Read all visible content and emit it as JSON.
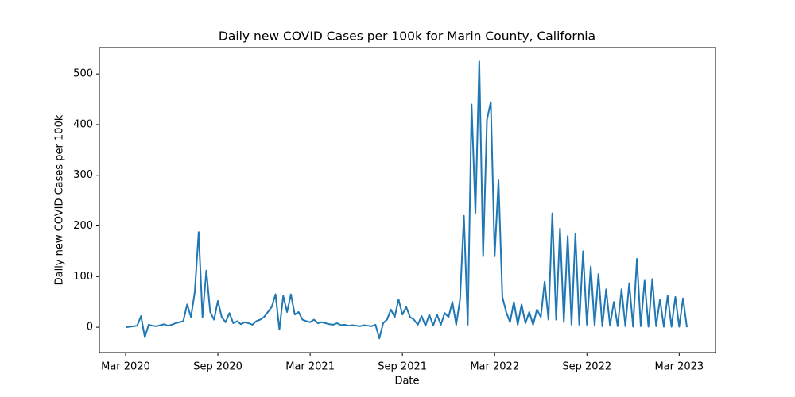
{
  "chart_data": {
    "type": "line",
    "title": "Daily new COVID Cases per 100k for Marin County, California",
    "xlabel": "Date",
    "ylabel": "Daily new COVID Cases per 100k",
    "color": "#1f77b4",
    "x": [
      "2020-03",
      "2020-03",
      "2020-03",
      "2020-03",
      "2020-04",
      "2020-04",
      "2020-04",
      "2020-04",
      "2020-05",
      "2020-05",
      "2020-05",
      "2020-05",
      "2020-06",
      "2020-06",
      "2020-06",
      "2020-06",
      "2020-07",
      "2020-07",
      "2020-07",
      "2020-07",
      "2020-08",
      "2020-08",
      "2020-08",
      "2020-08",
      "2020-09",
      "2020-09",
      "2020-09",
      "2020-09",
      "2020-10",
      "2020-10",
      "2020-10",
      "2020-10",
      "2020-11",
      "2020-11",
      "2020-11",
      "2020-11",
      "2020-12",
      "2020-12",
      "2020-12",
      "2020-12",
      "2021-01",
      "2021-01",
      "2021-01",
      "2021-01",
      "2021-02",
      "2021-02",
      "2021-02",
      "2021-02",
      "2021-03",
      "2021-03",
      "2021-03",
      "2021-03",
      "2021-04",
      "2021-04",
      "2021-04",
      "2021-04",
      "2021-05",
      "2021-05",
      "2021-05",
      "2021-05",
      "2021-06",
      "2021-06",
      "2021-06",
      "2021-06",
      "2021-07",
      "2021-07",
      "2021-07",
      "2021-07",
      "2021-08",
      "2021-08",
      "2021-08",
      "2021-08",
      "2021-09",
      "2021-09",
      "2021-09",
      "2021-09",
      "2021-10",
      "2021-10",
      "2021-10",
      "2021-10",
      "2021-11",
      "2021-11",
      "2021-11",
      "2021-11",
      "2021-12",
      "2021-12",
      "2021-12",
      "2021-12",
      "2022-01",
      "2022-01",
      "2022-01",
      "2022-01",
      "2022-02",
      "2022-02",
      "2022-02",
      "2022-02",
      "2022-03",
      "2022-03",
      "2022-03",
      "2022-03",
      "2022-04",
      "2022-04",
      "2022-04",
      "2022-04",
      "2022-05",
      "2022-05",
      "2022-05",
      "2022-05",
      "2022-06",
      "2022-06",
      "2022-06",
      "2022-06",
      "2022-07",
      "2022-07",
      "2022-07",
      "2022-07",
      "2022-08",
      "2022-08",
      "2022-08",
      "2022-08",
      "2022-09",
      "2022-09",
      "2022-09",
      "2022-09",
      "2022-10",
      "2022-10",
      "2022-10",
      "2022-10",
      "2022-11",
      "2022-11",
      "2022-11",
      "2022-11",
      "2022-12",
      "2022-12",
      "2022-12",
      "2022-12",
      "2023-01",
      "2023-01",
      "2023-01",
      "2023-01",
      "2023-02",
      "2023-02",
      "2023-02",
      "2023-02",
      "2023-03",
      "2023-03",
      "2023-03"
    ],
    "values": [
      0,
      1,
      2,
      3,
      22,
      -20,
      5,
      3,
      2,
      4,
      6,
      3,
      5,
      8,
      10,
      12,
      45,
      20,
      70,
      188,
      20,
      112,
      30,
      15,
      52,
      20,
      10,
      28,
      8,
      12,
      6,
      10,
      8,
      5,
      12,
      15,
      20,
      30,
      40,
      65,
      -5,
      62,
      30,
      65,
      25,
      30,
      15,
      12,
      10,
      15,
      8,
      10,
      8,
      6,
      5,
      8,
      4,
      5,
      3,
      4,
      3,
      2,
      4,
      3,
      2,
      5,
      -22,
      8,
      15,
      35,
      20,
      55,
      25,
      40,
      20,
      15,
      5,
      22,
      3,
      25,
      3,
      25,
      5,
      28,
      20,
      50,
      5,
      55,
      220,
      5,
      440,
      225,
      525,
      140,
      410,
      445,
      140,
      290,
      60,
      30,
      10,
      50,
      5,
      45,
      8,
      30,
      5,
      35,
      20,
      90,
      15,
      225,
      15,
      195,
      10,
      180,
      5,
      185,
      5,
      150,
      5,
      120,
      3,
      105,
      2,
      75,
      3,
      50,
      2,
      75,
      2,
      87,
      1,
      135,
      2,
      92,
      1,
      95,
      2,
      55,
      1,
      62,
      1,
      60,
      1,
      57,
      0
    ],
    "xticks": [
      {
        "value": "2020-03",
        "label": "Mar 2020"
      },
      {
        "value": "2020-09",
        "label": "Sep 2020"
      },
      {
        "value": "2021-03",
        "label": "Mar 2021"
      },
      {
        "value": "2021-09",
        "label": "Sep 2021"
      },
      {
        "value": "2022-03",
        "label": "Mar 2022"
      },
      {
        "value": "2022-09",
        "label": "Sep 2022"
      },
      {
        "value": "2023-03",
        "label": "Mar 2023"
      }
    ],
    "ylim": [
      -50,
      552
    ],
    "yticks": [
      0,
      100,
      200,
      300,
      400,
      500
    ]
  }
}
